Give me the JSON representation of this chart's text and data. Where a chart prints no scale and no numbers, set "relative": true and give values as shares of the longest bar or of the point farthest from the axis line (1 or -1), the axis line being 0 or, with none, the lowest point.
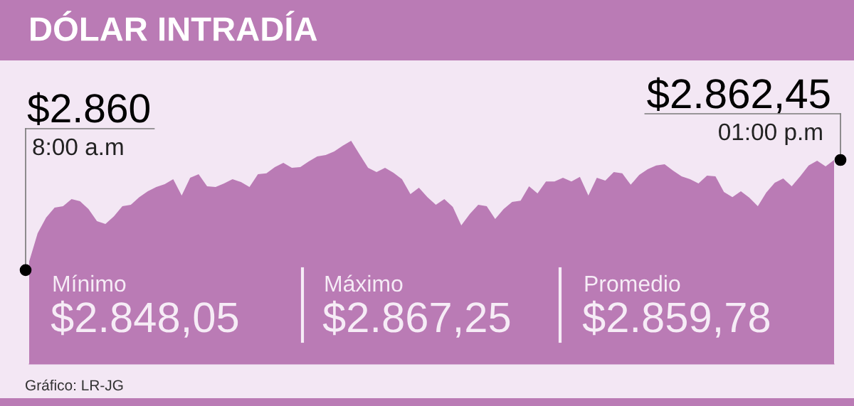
{
  "chart_data": {
    "type": "area",
    "title": "DÓLAR INTRADÍA",
    "relative": true,
    "color": "#ba7bb5",
    "categories": [
      null,
      null,
      null,
      null,
      null,
      null,
      null,
      null,
      null,
      null,
      null,
      null,
      null,
      null,
      null,
      null,
      null,
      null,
      null,
      null,
      null,
      null,
      null,
      null,
      null,
      null,
      null,
      null,
      null,
      null,
      null,
      null,
      null,
      null,
      null,
      null,
      null,
      null,
      null,
      null,
      null,
      null,
      null,
      null,
      null,
      null,
      null,
      null,
      null,
      null,
      null,
      null,
      null,
      null,
      null,
      null,
      null,
      null,
      null,
      null,
      null,
      null,
      null,
      null,
      null,
      null,
      null,
      null,
      null,
      null,
      null,
      null,
      null,
      null,
      null,
      null,
      null,
      null,
      null,
      null,
      null,
      null,
      null,
      null,
      null,
      null,
      null,
      null,
      null,
      null,
      null,
      null,
      null,
      null,
      null,
      null
    ],
    "values": [
      0.459,
      0.586,
      0.656,
      0.701,
      0.707,
      0.739,
      0.729,
      0.694,
      0.64,
      0.627,
      0.662,
      0.707,
      0.713,
      0.748,
      0.774,
      0.793,
      0.806,
      0.828,
      0.755,
      0.834,
      0.85,
      0.796,
      0.793,
      0.809,
      0.828,
      0.815,
      0.793,
      0.85,
      0.854,
      0.882,
      0.901,
      0.879,
      0.882,
      0.908,
      0.93,
      0.936,
      0.952,
      0.978,
      1,
      0.939,
      0.879,
      0.86,
      0.879,
      0.857,
      0.828,
      0.761,
      0.79,
      0.748,
      0.713,
      0.739,
      0.704,
      0.621,
      0.672,
      0.713,
      0.707,
      0.65,
      0.694,
      0.726,
      0.732,
      0.796,
      0.764,
      0.818,
      0.818,
      0.834,
      0.818,
      0.838,
      0.755,
      0.834,
      0.822,
      0.86,
      0.854,
      0.803,
      0.847,
      0.873,
      0.889,
      0.895,
      0.866,
      0.841,
      0.828,
      0.809,
      0.844,
      0.841,
      0.771,
      0.748,
      0.774,
      0.745,
      0.707,
      0.768,
      0.812,
      0.831,
      0.796,
      0.841,
      0.889,
      0.911,
      0.885,
      0.914
    ],
    "annotations": [
      "$2.860",
      "8:00 a.m",
      "$2.862,45",
      "01:00 p.m",
      "Mínimo",
      "$2.848,05",
      "Máximo",
      "$2.867,25",
      "Promedio",
      "$2.859,78",
      "Gráfico: LR-JG"
    ]
  }
}
